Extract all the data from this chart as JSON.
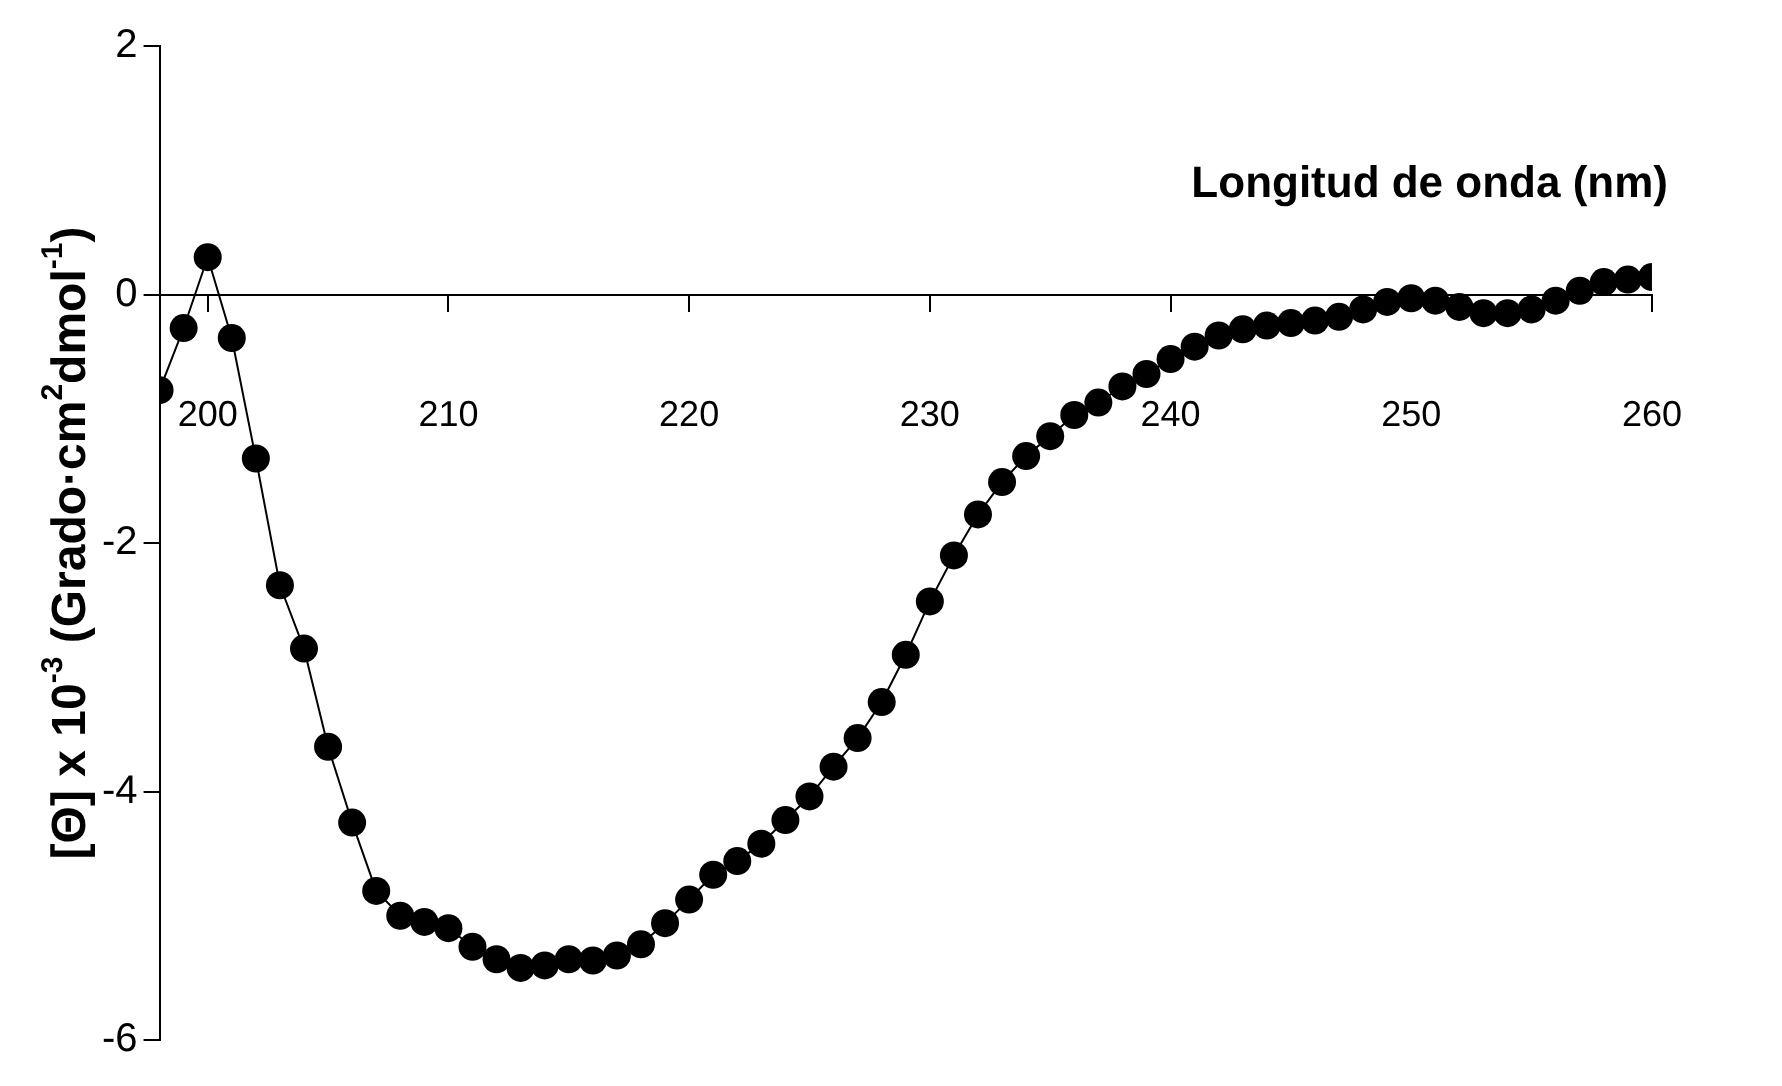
{
  "chart_data": {
    "type": "line",
    "xlabel": "Longitud de onda (nm)",
    "ylabel": "[Θ] x 10$^{-3}$ (Grado·cm$^{2}$dmol$^{-1}$)",
    "x": [
      198,
      199,
      200,
      201,
      202,
      203,
      204,
      205,
      206,
      207,
      208,
      209,
      210,
      211,
      212,
      213,
      214,
      215,
      216,
      217,
      218,
      219,
      220,
      221,
      222,
      223,
      224,
      225,
      226,
      227,
      228,
      229,
      230,
      231,
      232,
      233,
      234,
      235,
      236,
      237,
      238,
      239,
      240,
      241,
      242,
      243,
      244,
      245,
      246,
      247,
      248,
      249,
      250,
      251,
      252,
      253,
      254,
      255,
      256,
      257,
      258,
      259,
      260
    ],
    "series": [
      {
        "color": "#000000",
        "values": [
          -0.77,
          -0.27,
          0.3,
          -0.35,
          -1.32,
          -2.34,
          -2.85,
          -3.64,
          -4.25,
          -4.8,
          -5.0,
          -5.05,
          -5.1,
          -5.25,
          -5.35,
          -5.42,
          -5.4,
          -5.35,
          -5.36,
          -5.32,
          -5.23,
          -5.06,
          -4.87,
          -4.67,
          -4.56,
          -4.42,
          -4.23,
          -4.04,
          -3.8,
          -3.57,
          -3.28,
          -2.9,
          -2.47,
          -2.1,
          -1.77,
          -1.51,
          -1.3,
          -1.14,
          -0.97,
          -0.87,
          -0.74,
          -0.64,
          -0.52,
          -0.42,
          -0.33,
          -0.28,
          -0.25,
          -0.23,
          -0.21,
          -0.18,
          -0.12,
          -0.06,
          -0.03,
          -0.05,
          -0.1,
          -0.15,
          -0.15,
          -0.12,
          -0.05,
          0.03,
          0.1,
          0.12,
          0.14
        ]
      }
    ],
    "xlim": [
      198,
      260
    ],
    "xticks": [
      200,
      210,
      220,
      230,
      240,
      250,
      260
    ],
    "ylim": [
      -6,
      2
    ],
    "yticks": [
      -6,
      -4,
      -2,
      0,
      2
    ],
    "legend": false,
    "marker": "circle",
    "line_style": "solid"
  }
}
